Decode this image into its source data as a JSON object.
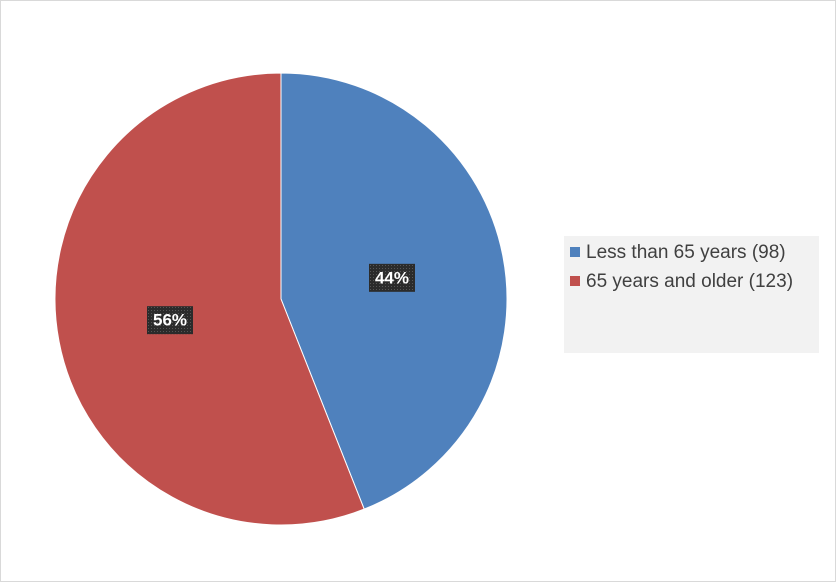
{
  "chart_data": {
    "type": "pie",
    "categories": [
      "Less than 65 years (98)",
      "65 years and older (123)"
    ],
    "values": [
      44,
      56
    ],
    "value_labels": [
      "44%",
      "56%"
    ],
    "colors": [
      "#4f81bd",
      "#c0504d"
    ],
    "legend": "right"
  }
}
